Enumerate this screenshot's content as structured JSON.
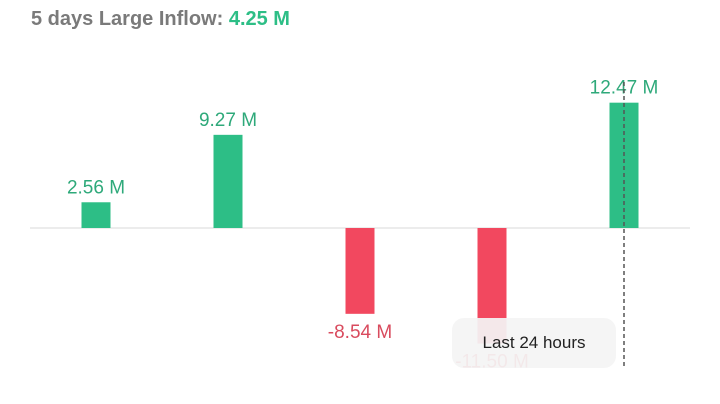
{
  "header": {
    "label": "5 days Large Inflow:",
    "value": "4.25 M"
  },
  "tooltip": {
    "text": "Last 24 hours"
  },
  "colors": {
    "positive": "#2dbe86",
    "negative": "#f2485f",
    "positive_label": "#2ea97a",
    "negative_label": "#d94b5e",
    "baseline": "#e6e6e6",
    "crosshair": "#555555"
  },
  "chart_data": {
    "type": "bar",
    "categories": [
      "",
      "",
      "",
      "",
      ""
    ],
    "values": [
      2.56,
      9.27,
      -8.54,
      -11.5,
      12.47
    ],
    "data_labels": [
      "2.56 M",
      "9.27 M",
      "-8.54 M",
      "-11.50 M",
      "12.47 M"
    ],
    "unit": "M",
    "title": "5 days Large Inflow: 4.25 M",
    "xlabel": "",
    "ylabel": "",
    "grid": false,
    "highlighted_index": 4
  }
}
